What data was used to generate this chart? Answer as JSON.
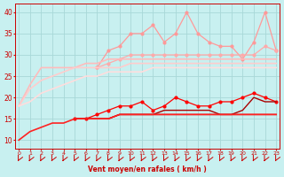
{
  "xlabel": "Vent moyen/en rafales ( km/h )",
  "background_color": "#c8f0f0",
  "grid_color": "#a8d8d8",
  "x": [
    0,
    1,
    2,
    3,
    4,
    5,
    6,
    7,
    8,
    9,
    10,
    11,
    12,
    13,
    14,
    15,
    16,
    17,
    18,
    19,
    20,
    21,
    22,
    23
  ],
  "ylim": [
    8,
    42
  ],
  "yticks": [
    10,
    15,
    20,
    25,
    30,
    35,
    40
  ],
  "series": [
    {
      "name": "line_pink_upper_volatile",
      "color": "#ff9999",
      "lw": 0.9,
      "marker": "o",
      "markersize": 2.0,
      "y": [
        null,
        null,
        null,
        null,
        null,
        null,
        null,
        27,
        31,
        32,
        35,
        35,
        37,
        33,
        35,
        40,
        35,
        33,
        32,
        32,
        29,
        33,
        40,
        31
      ]
    },
    {
      "name": "line_pink_smooth_upper",
      "color": "#ffaaaa",
      "lw": 0.9,
      "marker": "o",
      "markersize": 2.0,
      "y": [
        null,
        null,
        null,
        null,
        null,
        null,
        null,
        27,
        28,
        29,
        30,
        30,
        30,
        30,
        30,
        30,
        30,
        30,
        30,
        30,
        30,
        30,
        32,
        31
      ]
    },
    {
      "name": "line_pink_flat1",
      "color": "#ffbbbb",
      "lw": 1.2,
      "marker": null,
      "markersize": 0,
      "y": [
        18,
        23,
        27,
        27,
        27,
        27,
        28,
        28,
        29,
        29,
        29,
        29,
        29,
        29,
        29,
        29,
        29,
        29,
        29,
        29,
        29,
        29,
        29,
        29
      ]
    },
    {
      "name": "line_pink_flat2",
      "color": "#ffcccc",
      "lw": 1.2,
      "marker": null,
      "markersize": 0,
      "y": [
        18,
        22,
        24,
        25,
        26,
        27,
        27,
        27,
        27,
        27,
        28,
        28,
        28,
        28,
        28,
        28,
        28,
        28,
        28,
        28,
        28,
        28,
        28,
        28
      ]
    },
    {
      "name": "line_pink_lowest",
      "color": "#ffdddd",
      "lw": 1.2,
      "marker": null,
      "markersize": 0,
      "y": [
        18,
        19,
        21,
        22,
        23,
        24,
        25,
        25,
        26,
        26,
        26,
        26,
        27,
        27,
        27,
        27,
        27,
        27,
        27,
        27,
        27,
        27,
        27,
        27
      ]
    },
    {
      "name": "line_red_volatile",
      "color": "#ff0000",
      "lw": 0.9,
      "marker": "o",
      "markersize": 2.0,
      "y": [
        null,
        null,
        null,
        null,
        null,
        15,
        15,
        16,
        17,
        18,
        18,
        19,
        17,
        18,
        20,
        19,
        18,
        18,
        19,
        19,
        20,
        21,
        20,
        19
      ]
    },
    {
      "name": "line_darkred_flat",
      "color": "#cc0000",
      "lw": 1.0,
      "marker": null,
      "markersize": 0,
      "y": [
        null,
        null,
        null,
        null,
        null,
        15,
        15,
        15,
        15,
        16,
        16,
        16,
        16,
        16,
        16,
        16,
        16,
        16,
        16,
        16,
        16,
        16,
        16,
        16
      ]
    },
    {
      "name": "line_darkred_smooth",
      "color": "#aa0000",
      "lw": 1.0,
      "marker": null,
      "markersize": 0,
      "y": [
        null,
        null,
        null,
        null,
        null,
        15,
        15,
        15,
        15,
        16,
        16,
        16,
        16,
        17,
        17,
        17,
        17,
        17,
        16,
        16,
        17,
        20,
        19,
        19
      ]
    },
    {
      "name": "line_bright_red_rising",
      "color": "#ff2222",
      "lw": 1.2,
      "marker": null,
      "markersize": 0,
      "y": [
        10,
        12,
        13,
        14,
        14,
        15,
        15,
        15,
        15,
        16,
        16,
        16,
        16,
        16,
        16,
        16,
        16,
        16,
        16,
        16,
        16,
        16,
        16,
        16
      ]
    }
  ],
  "title_color": "#cc0000"
}
